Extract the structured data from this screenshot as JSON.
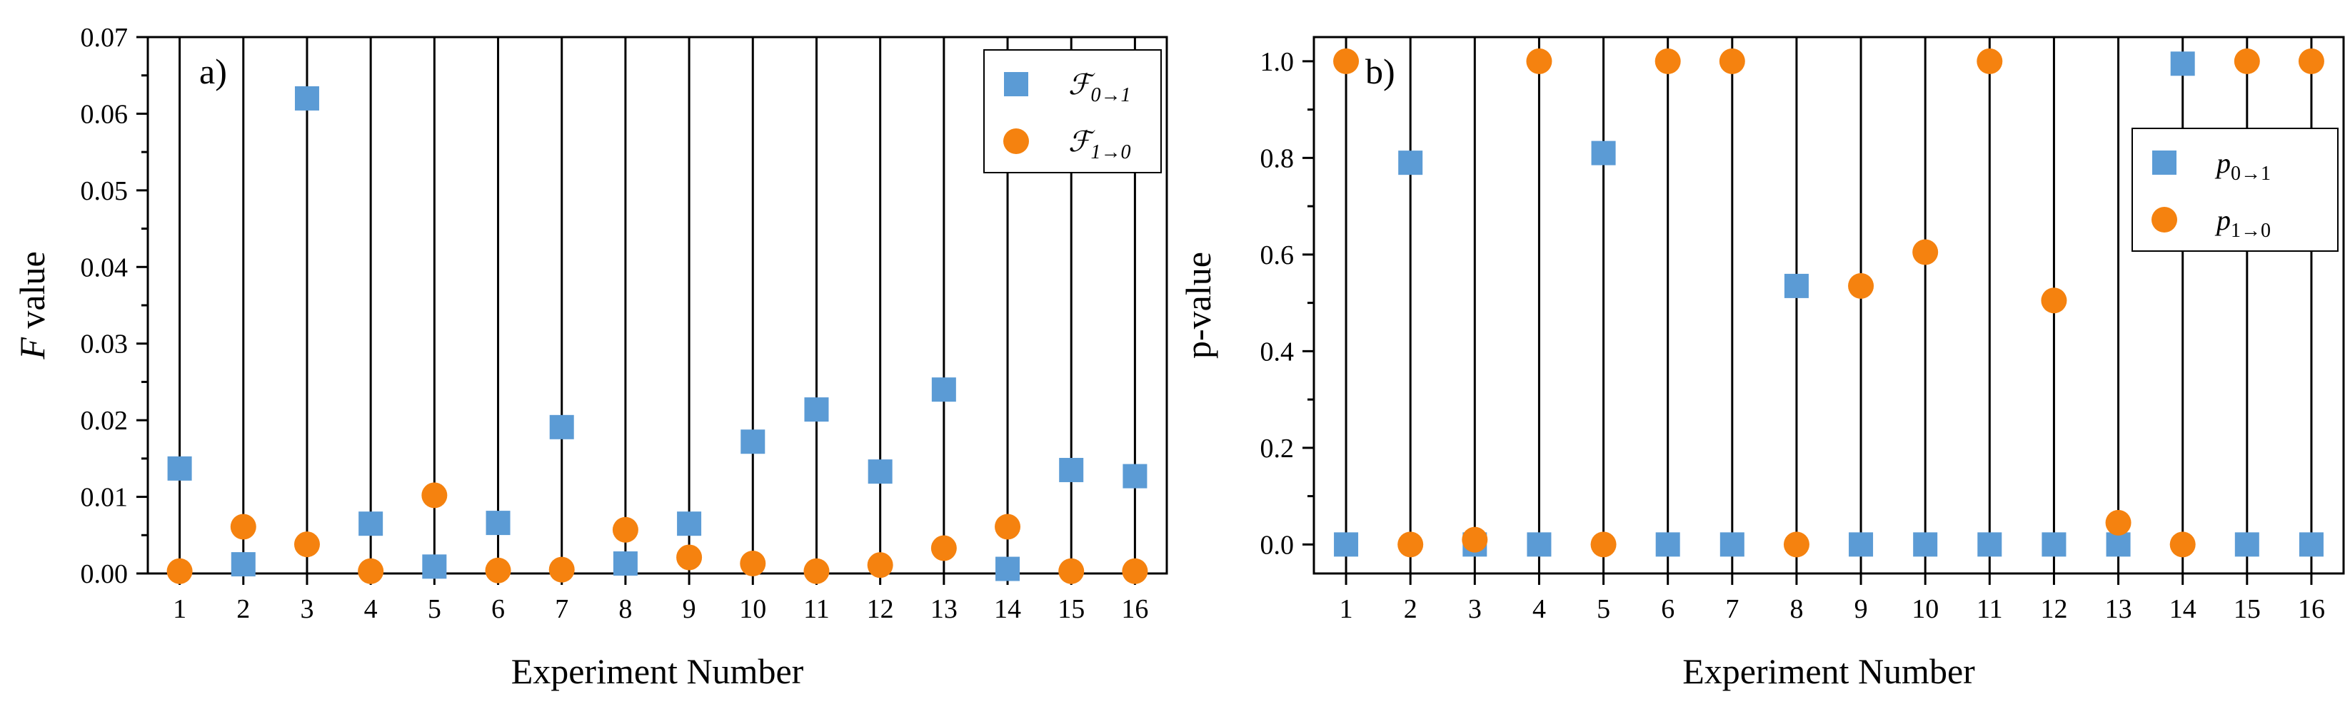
{
  "chart_data": [
    {
      "type": "scatter",
      "panel_label": "a)",
      "title": "",
      "xlabel": "Experiment Number",
      "ylabel_italic": "F",
      "ylabel_rest": " value",
      "ylim": [
        0,
        0.07
      ],
      "yticks": [
        "0.00",
        "0.01",
        "0.02",
        "0.03",
        "0.04",
        "0.05",
        "0.06",
        "0.07"
      ],
      "xticks": [
        "1",
        "2",
        "3",
        "4",
        "5",
        "6",
        "7",
        "8",
        "9",
        "10",
        "11",
        "12",
        "13",
        "14",
        "15",
        "16"
      ],
      "grid": "vertical-lines",
      "legend_position": "top-right",
      "series": [
        {
          "name": "ℱ",
          "name_sub": "0→1",
          "marker": "square",
          "color": "#5b9bd5",
          "x": [
            1,
            2,
            3,
            4,
            5,
            6,
            7,
            8,
            9,
            10,
            11,
            12,
            13,
            14,
            15,
            16
          ],
          "values": [
            0.0137,
            0.0012,
            0.062,
            0.0065,
            0.0009,
            0.0066,
            0.0191,
            0.0013,
            0.0065,
            0.0172,
            0.0214,
            0.0133,
            0.024,
            0.0006,
            0.0135,
            0.0127
          ]
        },
        {
          "name": "ℱ",
          "name_sub": "1→0",
          "marker": "circle",
          "color": "#f5820f",
          "x": [
            1,
            2,
            3,
            4,
            5,
            6,
            7,
            8,
            9,
            10,
            11,
            12,
            13,
            14,
            15,
            16
          ],
          "values": [
            0.0003,
            0.0061,
            0.0038,
            0.0003,
            0.0102,
            0.0004,
            0.0005,
            0.0057,
            0.0021,
            0.0013,
            0.0003,
            0.0011,
            0.0033,
            0.0061,
            0.0003,
            0.0003
          ]
        }
      ]
    },
    {
      "type": "scatter",
      "panel_label": "b)",
      "title": "",
      "xlabel": "Experiment Number",
      "ylabel": "p-value",
      "ylim": [
        -0.06,
        1.05
      ],
      "yticks": [
        "0.0",
        "0.2",
        "0.4",
        "0.6",
        "0.8",
        "1.0"
      ],
      "ytick_values": [
        0,
        0.2,
        0.4,
        0.6,
        0.8,
        1.0
      ],
      "xticks": [
        "1",
        "2",
        "3",
        "4",
        "5",
        "6",
        "7",
        "8",
        "9",
        "10",
        "11",
        "12",
        "13",
        "14",
        "15",
        "16"
      ],
      "grid": "vertical-lines",
      "legend_position": "top-right",
      "series": [
        {
          "name": "p",
          "name_sub": "0→1",
          "marker": "square",
          "color": "#5b9bd5",
          "x": [
            1,
            2,
            3,
            4,
            5,
            6,
            7,
            8,
            9,
            10,
            11,
            12,
            13,
            14,
            15,
            16
          ],
          "values": [
            0.0,
            0.79,
            0.0,
            0.0,
            0.81,
            0.0,
            0.0,
            0.535,
            0.0,
            0.0,
            0.0,
            0.0,
            0.0,
            0.995,
            0.0,
            0.0
          ]
        },
        {
          "name": "p",
          "name_sub": "1→0",
          "marker": "circle",
          "color": "#f5820f",
          "x": [
            1,
            2,
            3,
            4,
            5,
            6,
            7,
            8,
            9,
            10,
            11,
            12,
            13,
            14,
            15,
            16
          ],
          "values": [
            1.0,
            0.0,
            0.01,
            1.0,
            0.0,
            1.0,
            1.0,
            0.0,
            0.535,
            0.605,
            1.0,
            0.505,
            0.045,
            0.0,
            1.0,
            1.0
          ]
        }
      ]
    }
  ]
}
